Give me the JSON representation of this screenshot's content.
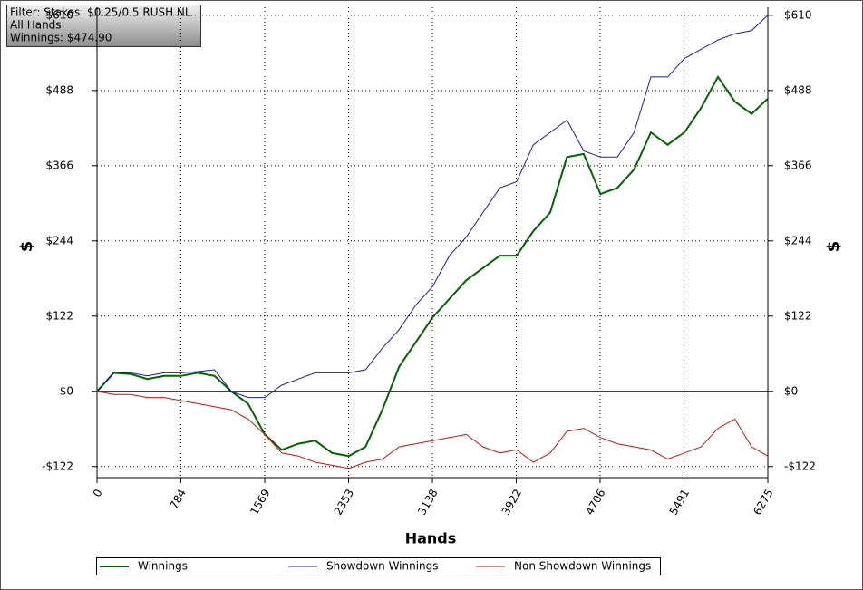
{
  "chart_data": {
    "type": "line",
    "filter_lines": [
      "Filter: Stakes: $0.25/0.5 RUSH NL",
      "All Hands",
      "Winnings: $474.90"
    ],
    "xlabel": "Hands",
    "ylabel": "$",
    "y2label": "$",
    "x": [
      0,
      157,
      314,
      471,
      628,
      785,
      942,
      1099,
      1256,
      1413,
      1570,
      1727,
      1884,
      2041,
      2198,
      2355,
      2512,
      2669,
      2826,
      2983,
      3140,
      3297,
      3454,
      3611,
      3768,
      3925,
      4082,
      4239,
      4396,
      4553,
      4710,
      4867,
      5024,
      5181,
      5338,
      5495,
      5652,
      5809,
      5966,
      6123,
      6275
    ],
    "series": [
      {
        "name": "Winnings",
        "color": "#006400",
        "values": [
          0,
          30,
          28,
          20,
          25,
          25,
          30,
          25,
          0,
          -20,
          -70,
          -95,
          -85,
          -80,
          -100,
          -105,
          -90,
          -30,
          40,
          80,
          120,
          150,
          180,
          200,
          220,
          220,
          260,
          290,
          380,
          385,
          320,
          330,
          360,
          420,
          400,
          420,
          460,
          510,
          470,
          450,
          475
        ]
      },
      {
        "name": "Showdown Winnings",
        "color": "#1c1c9c",
        "values": [
          0,
          30,
          30,
          25,
          30,
          30,
          32,
          35,
          0,
          -10,
          -10,
          10,
          20,
          30,
          30,
          30,
          35,
          70,
          100,
          140,
          170,
          220,
          250,
          290,
          330,
          340,
          400,
          420,
          440,
          390,
          380,
          380,
          420,
          510,
          510,
          540,
          555,
          570,
          580,
          585,
          610
        ]
      },
      {
        "name": "Non Showdown Winnings",
        "color": "#cc1111",
        "values": [
          0,
          -5,
          -5,
          -10,
          -10,
          -15,
          -20,
          -25,
          -30,
          -45,
          -70,
          -100,
          -105,
          -115,
          -120,
          -125,
          -115,
          -110,
          -90,
          -85,
          -80,
          -75,
          -70,
          -90,
          -100,
          -95,
          -115,
          -100,
          -65,
          -60,
          -75,
          -85,
          -90,
          -95,
          -110,
          -100,
          -90,
          -60,
          -45,
          -90,
          -105
        ]
      }
    ],
    "xlim": [
      0,
      6275
    ],
    "xticks": [
      0,
      784,
      1569,
      2353,
      3138,
      3922,
      4706,
      5491,
      6275
    ],
    "ylim": [
      -140,
      623
    ],
    "yticks": [
      {
        "value": -122,
        "label": "-$122"
      },
      {
        "value": 0,
        "label": "$0"
      },
      {
        "value": 122,
        "label": "$122"
      },
      {
        "value": 244,
        "label": "$244"
      },
      {
        "value": 366,
        "label": "$366"
      },
      {
        "value": 488,
        "label": "$488"
      },
      {
        "value": 610,
        "label": "$610"
      }
    ],
    "grid": true
  }
}
